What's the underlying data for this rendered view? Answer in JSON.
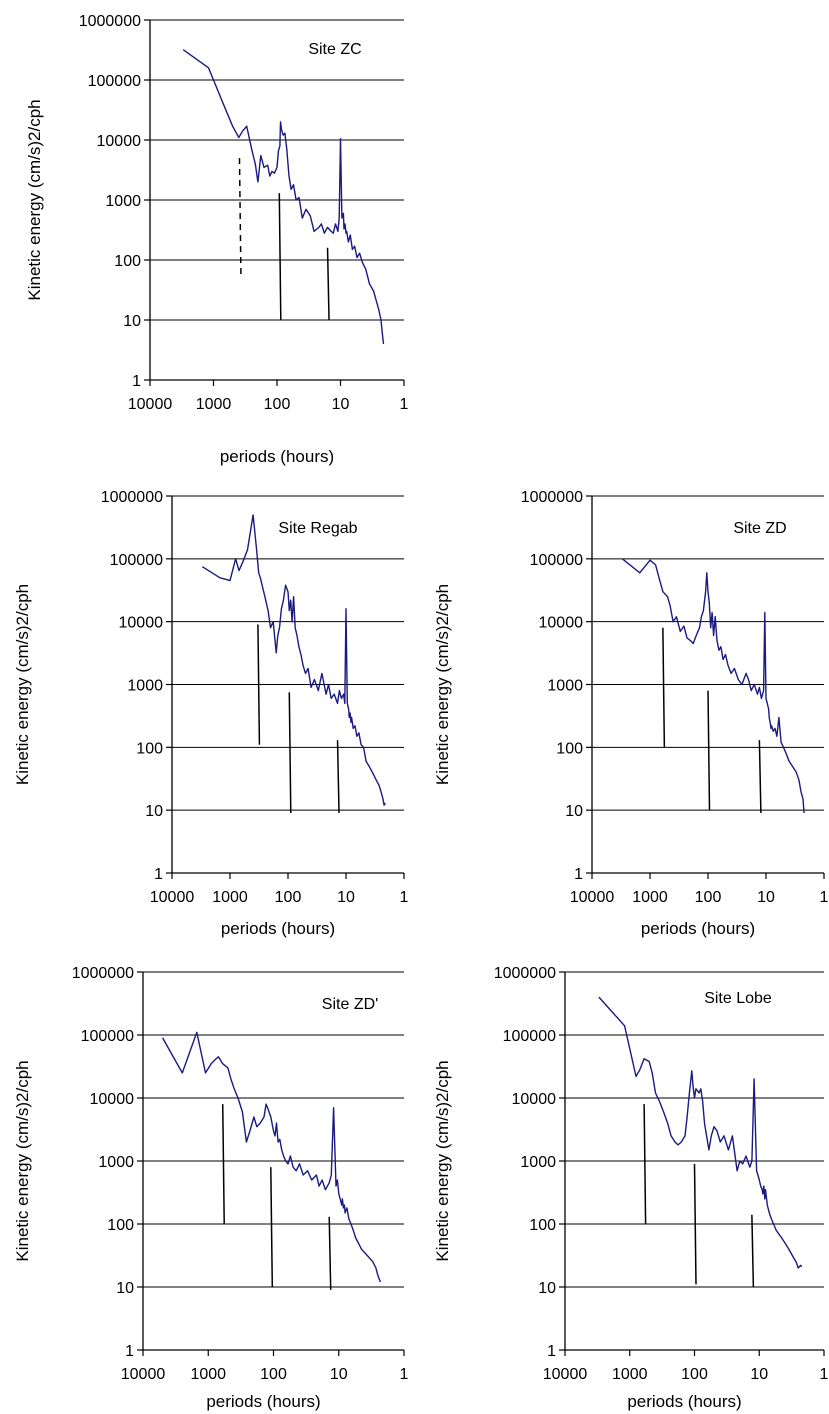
{
  "chart_data": [
    {
      "id": "zc",
      "type": "line",
      "title": "Site ZC",
      "xlabel": "periods (hours)",
      "ylabel": "Kinetic energy (cm/s)2/cph",
      "x_scale": "log",
      "x_reversed": true,
      "xlim": [
        10000,
        1
      ],
      "y_scale": "log",
      "ylim": [
        1,
        1000000
      ],
      "x_tick_labels": [
        "10000",
        "1000",
        "100",
        "10",
        "1"
      ],
      "y_tick_labels": [
        "1",
        "10",
        "100",
        "1000",
        "10000",
        "100000",
        "1000000"
      ],
      "grid": "horizontal",
      "series": [
        {
          "color": "#1a1a80",
          "x": [
            3000,
            1200,
            700,
            500,
            400,
            350,
            300,
            250,
            220,
            200,
            180,
            160,
            140,
            130,
            120,
            110,
            100,
            95,
            90,
            88,
            85,
            80,
            75,
            70,
            65,
            60,
            55,
            50,
            45,
            40,
            35,
            30,
            26,
            22,
            20,
            18,
            16,
            14,
            13,
            12,
            11,
            10.5,
            10,
            9.5,
            9,
            8.8,
            8.5,
            8.2,
            8,
            7.5,
            7,
            6.5,
            6,
            5.5,
            5,
            4.5,
            4,
            3.5,
            3,
            2.7,
            2.5,
            2.3,
            2.2,
            2.1
          ],
          "y": [
            320000,
            160000,
            40000,
            17000,
            11000,
            14000,
            17000,
            7000,
            4000,
            2000,
            5500,
            3500,
            3800,
            2500,
            3000,
            2800,
            3500,
            6500,
            8000,
            20000,
            15000,
            12000,
            13000,
            7000,
            2600,
            1500,
            1800,
            1000,
            1100,
            500,
            700,
            550,
            300,
            350,
            400,
            280,
            350,
            300,
            280,
            400,
            300,
            500,
            10500,
            500,
            600,
            330,
            400,
            280,
            300,
            200,
            260,
            150,
            170,
            110,
            130,
            90,
            70,
            40,
            30,
            20,
            15,
            10,
            6,
            4
          ]
        }
      ],
      "markers": [
        {
          "x": 390,
          "y_top": 5000,
          "y_bottom": 50,
          "style": "dashed"
        },
        {
          "x": 92,
          "y_top": 1300,
          "y_bottom": 10,
          "style": "solid"
        },
        {
          "x": 16,
          "y_top": 160,
          "y_bottom": 10,
          "style": "solid"
        }
      ]
    },
    {
      "id": "regab",
      "type": "line",
      "title": "Site Regab",
      "xlabel": "periods (hours)",
      "ylabel": "Kinetic energy (cm/s)2/cph",
      "x_scale": "log",
      "x_reversed": true,
      "xlim": [
        10000,
        1
      ],
      "y_scale": "log",
      "ylim": [
        1,
        1000000
      ],
      "x_tick_labels": [
        "10000",
        "1000",
        "100",
        "10",
        "1"
      ],
      "y_tick_labels": [
        "1",
        "10",
        "100",
        "1000",
        "10000",
        "100000",
        "1000000"
      ],
      "grid": "horizontal",
      "series": [
        {
          "color": "#1a1a80",
          "x": [
            3000,
            1500,
            1000,
            800,
            700,
            600,
            500,
            450,
            400,
            350,
            320,
            300,
            280,
            250,
            220,
            200,
            180,
            160,
            150,
            140,
            130,
            120,
            110,
            100,
            95,
            90,
            85,
            80,
            75,
            70,
            65,
            60,
            55,
            50,
            45,
            40,
            35,
            30,
            26,
            22,
            20,
            18,
            16,
            14,
            13,
            12,
            11,
            10.5,
            10,
            9.5,
            9,
            8.8,
            8.5,
            8.2,
            8,
            7.5,
            7,
            6.5,
            6,
            5.5,
            5,
            4.5,
            4,
            3.5,
            3,
            2.7,
            2.5,
            2.3,
            2.2,
            2.1
          ],
          "y": [
            75000,
            50000,
            45000,
            100000,
            65000,
            90000,
            140000,
            250000,
            500000,
            150000,
            60000,
            50000,
            38000,
            25000,
            15000,
            8000,
            10000,
            3200,
            6000,
            8000,
            16000,
            22000,
            38000,
            30000,
            15000,
            22000,
            10000,
            25000,
            8000,
            6000,
            4000,
            3000,
            2000,
            1500,
            1800,
            900,
            1200,
            800,
            1500,
            700,
            1000,
            600,
            700,
            500,
            800,
            600,
            700,
            500,
            16000,
            500,
            400,
            300,
            350,
            250,
            300,
            200,
            220,
            150,
            170,
            110,
            100,
            60,
            50,
            40,
            30,
            25,
            20,
            15,
            12,
            13
          ]
        }
      ],
      "markers": [
        {
          "x": 330,
          "y_top": 9000,
          "y_bottom": 110,
          "style": "solid"
        },
        {
          "x": 95,
          "y_top": 750,
          "y_bottom": 9,
          "style": "solid"
        },
        {
          "x": 14,
          "y_top": 130,
          "y_bottom": 9,
          "style": "solid"
        }
      ]
    },
    {
      "id": "zd",
      "type": "line",
      "title": "Site ZD",
      "xlabel": "periods (hours)",
      "ylabel": "Kinetic energy (cm/s)2/cph",
      "x_scale": "log",
      "x_reversed": true,
      "xlim": [
        10000,
        1
      ],
      "y_scale": "log",
      "ylim": [
        1,
        1000000
      ],
      "x_tick_labels": [
        "10000",
        "1000",
        "100",
        "10",
        "1"
      ],
      "y_tick_labels": [
        "1",
        "10",
        "100",
        "1000",
        "10000",
        "100000",
        "1000000"
      ],
      "grid": "horizontal",
      "series": [
        {
          "color": "#1a1a80",
          "x": [
            3000,
            1500,
            1000,
            800,
            700,
            600,
            500,
            450,
            400,
            350,
            300,
            260,
            230,
            200,
            180,
            160,
            140,
            130,
            120,
            110,
            105,
            100,
            95,
            90,
            85,
            80,
            75,
            70,
            65,
            60,
            55,
            50,
            45,
            40,
            35,
            30,
            26,
            22,
            20,
            18,
            16,
            14,
            13,
            12,
            11,
            10.5,
            10,
            9.5,
            9,
            8.8,
            8.5,
            8.2,
            8,
            7.5,
            7,
            6.5,
            6,
            5.5,
            5,
            4.5,
            4,
            3.5,
            3,
            2.7,
            2.5,
            2.3,
            2.2
          ],
          "y": [
            100000,
            60000,
            95000,
            80000,
            50000,
            30000,
            25000,
            18000,
            10000,
            12000,
            7000,
            8500,
            5500,
            5000,
            4500,
            6000,
            8000,
            12000,
            15000,
            30000,
            60000,
            30000,
            20000,
            8000,
            14000,
            6000,
            12000,
            5000,
            3500,
            4000,
            2500,
            3000,
            2000,
            1500,
            1800,
            1200,
            1000,
            1500,
            1200,
            800,
            1000,
            700,
            900,
            600,
            800,
            14000,
            600,
            500,
            400,
            300,
            250,
            200,
            220,
            180,
            200,
            150,
            300,
            120,
            100,
            80,
            60,
            50,
            40,
            30,
            20,
            15,
            9
          ]
        }
      ],
      "markers": [
        {
          "x": 600,
          "y_top": 8000,
          "y_bottom": 100,
          "style": "solid"
        },
        {
          "x": 100,
          "y_top": 800,
          "y_bottom": 10,
          "style": "solid"
        },
        {
          "x": 13,
          "y_top": 130,
          "y_bottom": 9,
          "style": "solid"
        }
      ]
    },
    {
      "id": "zdprime",
      "type": "line",
      "title": "Site ZD'",
      "xlabel": "periods (hours)",
      "ylabel": "Kinetic energy (cm/s)2/cph",
      "x_scale": "log",
      "x_reversed": true,
      "xlim": [
        10000,
        1
      ],
      "y_scale": "log",
      "ylim": [
        1,
        1000000
      ],
      "x_tick_labels": [
        "10000",
        "1000",
        "100",
        "10",
        "1"
      ],
      "y_tick_labels": [
        "1",
        "10",
        "100",
        "1000",
        "10000",
        "100000",
        "1000000"
      ],
      "grid": "horizontal",
      "series": [
        {
          "color": "#1a1a80",
          "x": [
            5000,
            2500,
            1500,
            1100,
            900,
            800,
            700,
            600,
            500,
            450,
            400,
            350,
            300,
            260,
            230,
            200,
            180,
            160,
            140,
            130,
            120,
            110,
            100,
            95,
            90,
            85,
            80,
            75,
            70,
            65,
            60,
            55,
            50,
            45,
            40,
            35,
            30,
            26,
            22,
            20,
            18,
            16,
            14,
            13,
            12,
            11,
            10.5,
            10,
            9.5,
            9,
            8.8,
            8.5,
            8.2,
            8,
            7.5,
            7,
            6.5,
            6,
            5.5,
            5,
            4.5,
            4,
            3.5,
            3,
            2.7,
            2.5,
            2.3
          ],
          "y": [
            90000,
            25000,
            110000,
            25000,
            35000,
            40000,
            45000,
            35000,
            30000,
            20000,
            14000,
            10000,
            6000,
            2000,
            3000,
            5000,
            3500,
            4000,
            5000,
            8000,
            6500,
            5000,
            3000,
            2500,
            4000,
            2000,
            2200,
            1500,
            1200,
            1000,
            900,
            1200,
            800,
            700,
            900,
            600,
            700,
            500,
            600,
            400,
            500,
            350,
            450,
            600,
            7000,
            400,
            500,
            300,
            250,
            200,
            250,
            180,
            200,
            150,
            180,
            120,
            100,
            80,
            60,
            50,
            40,
            35,
            30,
            25,
            20,
            15,
            12
          ]
        }
      ],
      "markers": [
        {
          "x": 600,
          "y_top": 8000,
          "y_bottom": 100,
          "style": "solid"
        },
        {
          "x": 110,
          "y_top": 800,
          "y_bottom": 10,
          "style": "solid"
        },
        {
          "x": 14,
          "y_top": 130,
          "y_bottom": 9,
          "style": "solid"
        }
      ]
    },
    {
      "id": "lobe",
      "type": "line",
      "title": "Site Lobe",
      "xlabel": "periods (hours)",
      "ylabel": "Kinetic energy (cm/s)2/cph",
      "x_scale": "log",
      "x_reversed": true,
      "xlim": [
        10000,
        1
      ],
      "y_scale": "log",
      "ylim": [
        1,
        1000000
      ],
      "x_tick_labels": [
        "10000",
        "1000",
        "100",
        "10",
        "1"
      ],
      "y_tick_labels": [
        "1",
        "10",
        "100",
        "1000",
        "10000",
        "100000",
        "1000000"
      ],
      "grid": "horizontal",
      "series": [
        {
          "color": "#1a1a80",
          "x": [
            3000,
            1200,
            800,
            700,
            600,
            500,
            450,
            400,
            350,
            300,
            260,
            230,
            200,
            180,
            160,
            140,
            130,
            120,
            110,
            105,
            100,
            95,
            90,
            85,
            80,
            75,
            70,
            65,
            60,
            55,
            50,
            45,
            40,
            35,
            30,
            26,
            22,
            20,
            18,
            16,
            14,
            13,
            12,
            11,
            10.5,
            10,
            9.5,
            9,
            8.8,
            8.5,
            8.2,
            8,
            7.5,
            7,
            6.5,
            6,
            5.5,
            5,
            4.5,
            4,
            3.5,
            3,
            2.7,
            2.5,
            2.3,
            2.2
          ],
          "y": [
            400000,
            140000,
            22000,
            28000,
            42000,
            38000,
            25000,
            12000,
            9000,
            6000,
            4000,
            2500,
            2000,
            1800,
            2000,
            2500,
            5000,
            12000,
            27000,
            15000,
            10000,
            14000,
            13000,
            12000,
            14000,
            9000,
            4000,
            2500,
            1500,
            2500,
            3500,
            3000,
            2000,
            2500,
            1500,
            2500,
            700,
            1000,
            900,
            1200,
            800,
            1000,
            20000,
            700,
            600,
            500,
            400,
            350,
            300,
            400,
            250,
            350,
            200,
            150,
            120,
            100,
            80,
            70,
            60,
            50,
            40,
            30,
            25,
            20,
            22,
            21
          ]
        }
      ],
      "markers": [
        {
          "x": 600,
          "y_top": 8000,
          "y_bottom": 100,
          "style": "solid"
        },
        {
          "x": 100,
          "y_top": 900,
          "y_bottom": 11,
          "style": "solid"
        },
        {
          "x": 13,
          "y_top": 140,
          "y_bottom": 10,
          "style": "solid"
        }
      ]
    }
  ]
}
